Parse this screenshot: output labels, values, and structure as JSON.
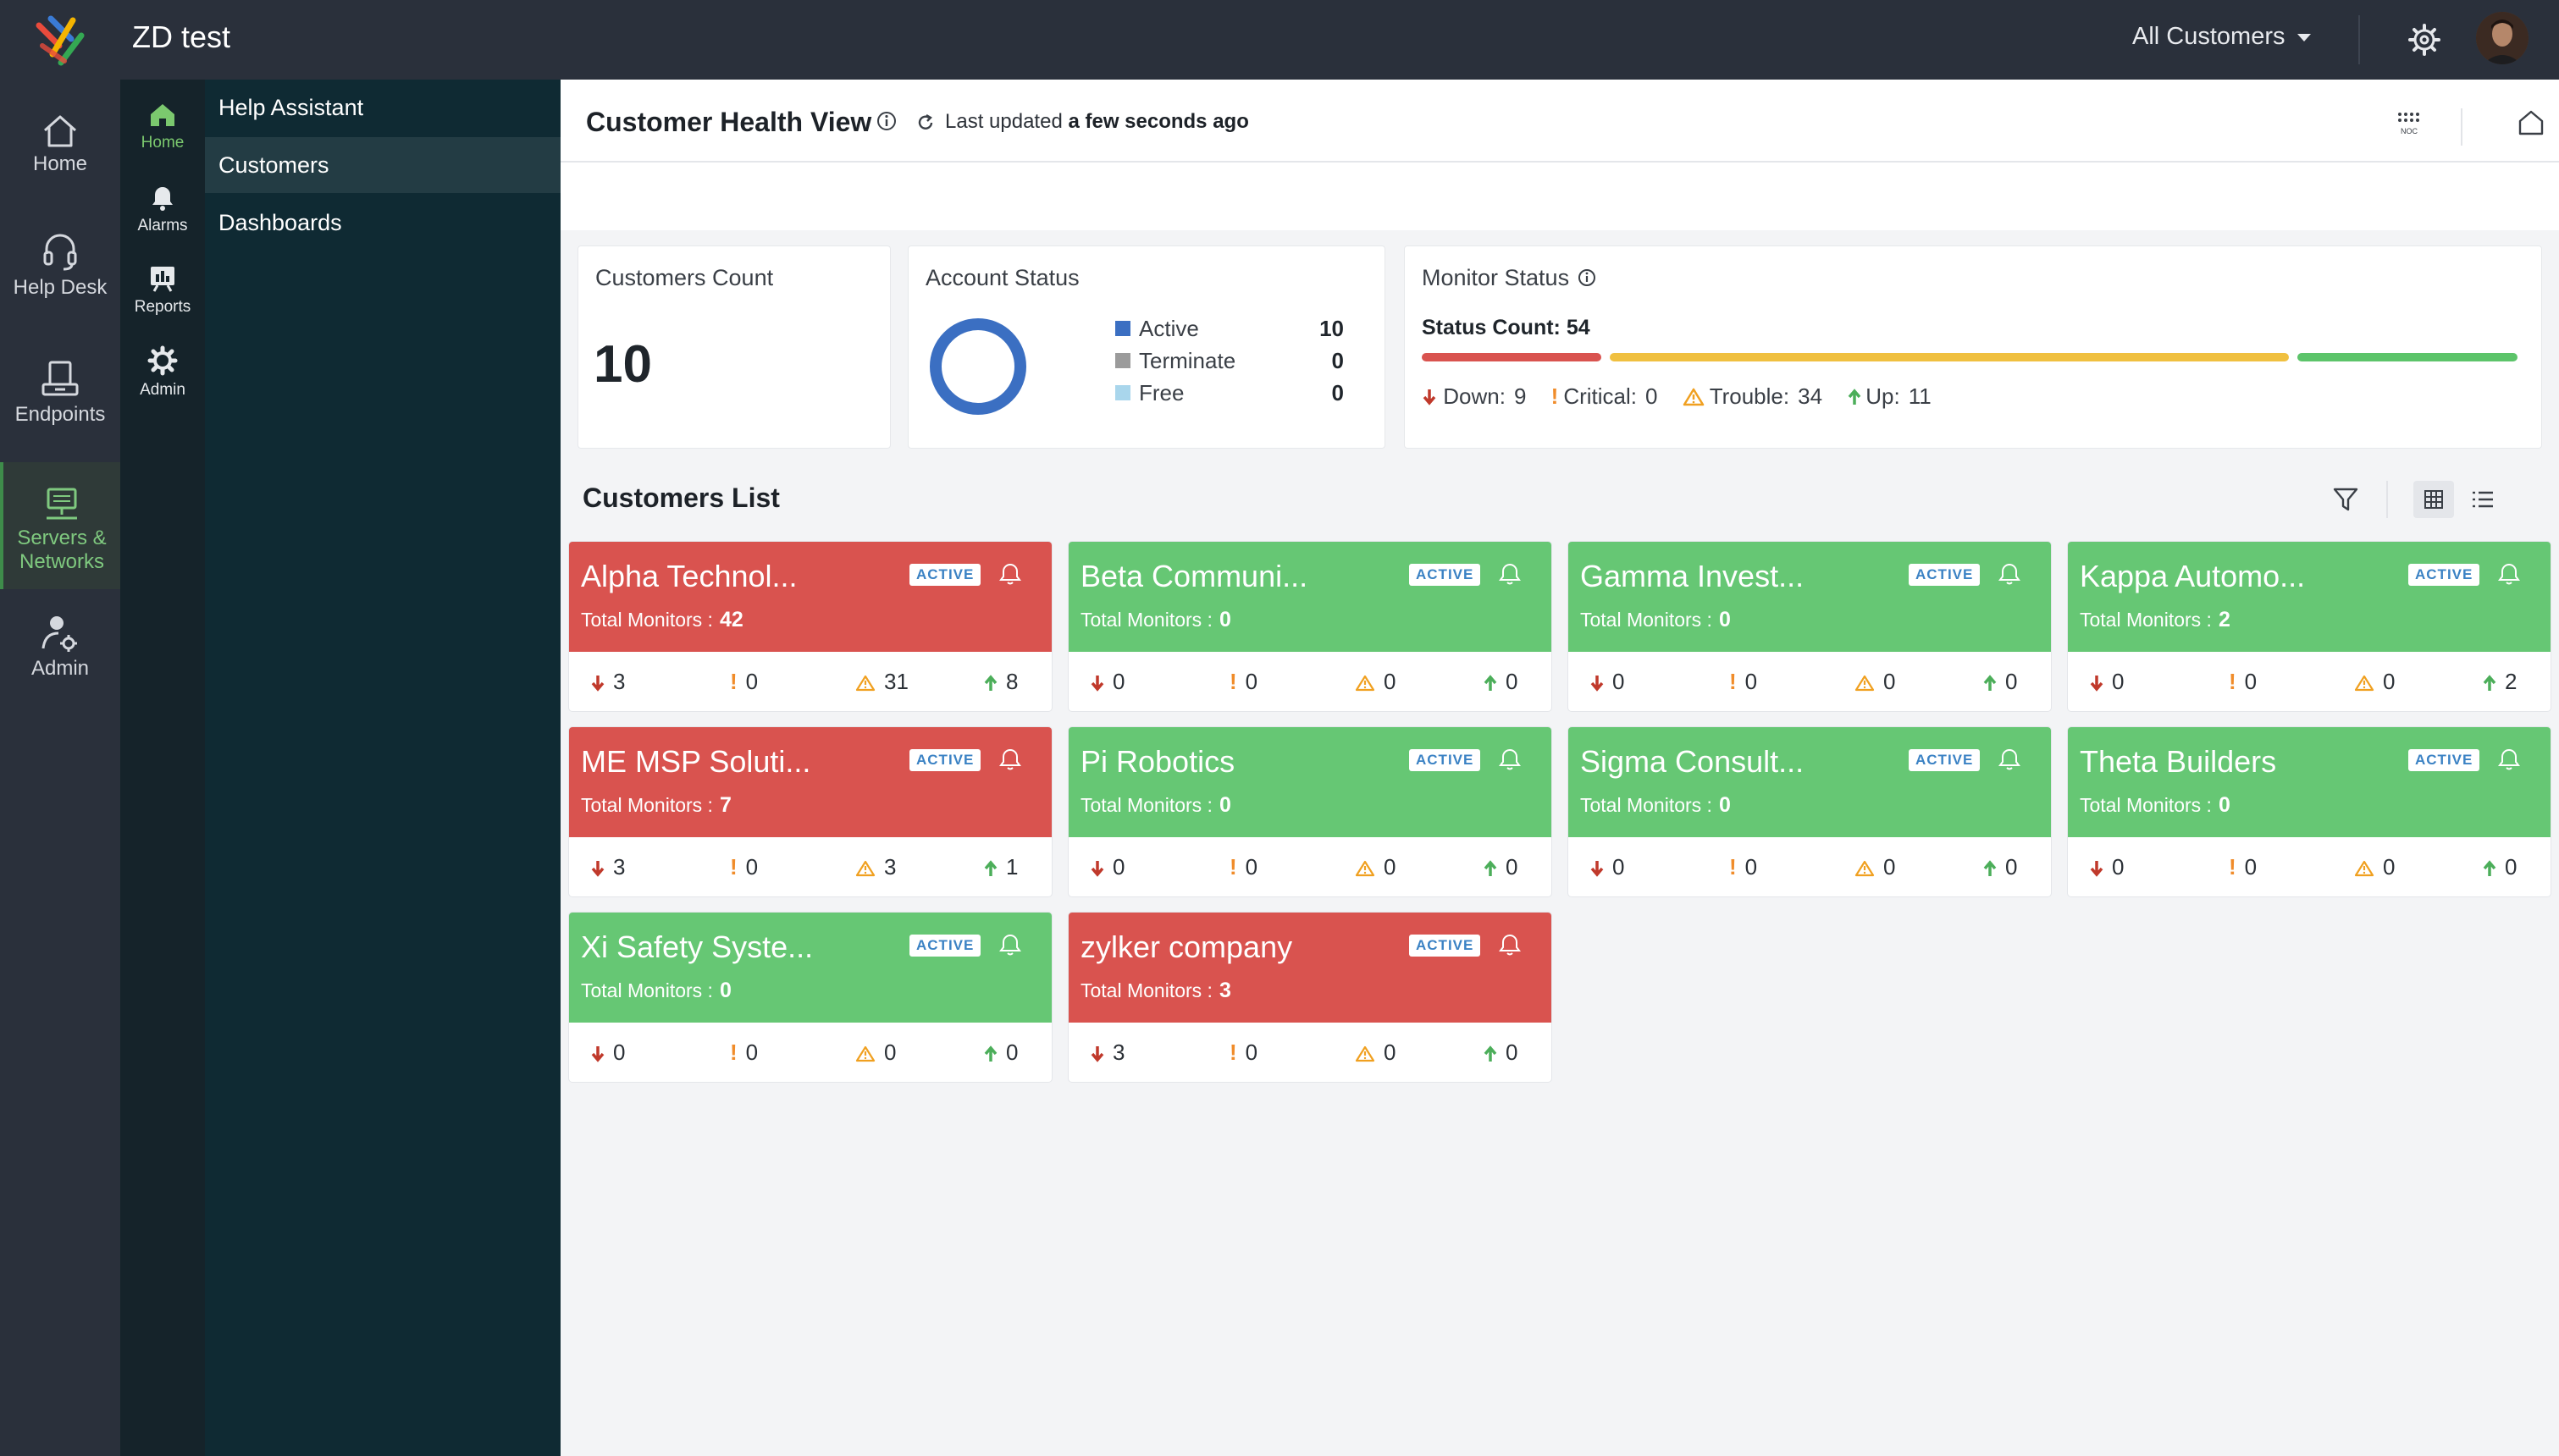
{
  "topbar": {
    "app_title": "ZD test",
    "scope_label": "All Customers"
  },
  "rail": [
    {
      "label": "Home",
      "icon": "home-icon"
    },
    {
      "label": "Help Desk",
      "icon": "headset-icon"
    },
    {
      "label": "Endpoints",
      "icon": "endpoints-icon"
    },
    {
      "label": "Servers &\nNetworks",
      "icon": "network-icon",
      "active": true
    },
    {
      "label": "Admin",
      "icon": "admin-icon"
    }
  ],
  "rail2": [
    {
      "label": "Home",
      "icon": "home-icon",
      "active": true
    },
    {
      "label": "Alarms",
      "icon": "bell-icon"
    },
    {
      "label": "Reports",
      "icon": "reports-icon"
    },
    {
      "label": "Admin",
      "icon": "gear-icon"
    }
  ],
  "submenu": [
    "Help Assistant",
    "Customers",
    "Dashboards"
  ],
  "header": {
    "title": "Customer Health View",
    "updated_prefix": "Last updated",
    "updated_value": "a few seconds ago",
    "noc_label": "NOC"
  },
  "summary": {
    "customers_count": {
      "title": "Customers Count",
      "value": "10"
    },
    "account_status": {
      "title": "Account Status",
      "items": [
        {
          "label": "Active",
          "value": "10",
          "color": "#3b6fc2"
        },
        {
          "label": "Terminate",
          "value": "0",
          "color": "#9b9b9b"
        },
        {
          "label": "Free",
          "value": "0",
          "color": "#a9d6ec"
        }
      ]
    },
    "monitor_status": {
      "title": "Monitor Status",
      "count_label": "Status Count: 54",
      "bars": [
        {
          "status": "down",
          "value": 9,
          "color": "#d9534f"
        },
        {
          "status": "trouble",
          "value": 34,
          "color": "#f0c040"
        },
        {
          "status": "up",
          "value": 11,
          "color": "#5cc46a"
        }
      ],
      "down": "Down:",
      "down_value": "9",
      "critical": "Critical:",
      "critical_value": "0",
      "trouble": "Trouble:",
      "trouble_value": "34",
      "up": "Up:",
      "up_value": "11"
    }
  },
  "list": {
    "title": "Customers List",
    "badge": "ACTIVE",
    "total_monitors_label": "Total Monitors :",
    "customers": [
      {
        "name": "Alpha Technol...",
        "status": "red",
        "total": "42",
        "down": "3",
        "critical": "0",
        "trouble": "31",
        "up": "8"
      },
      {
        "name": "Beta Communi...",
        "status": "green",
        "total": "0",
        "down": "0",
        "critical": "0",
        "trouble": "0",
        "up": "0"
      },
      {
        "name": "Gamma Invest...",
        "status": "green",
        "total": "0",
        "down": "0",
        "critical": "0",
        "trouble": "0",
        "up": "0"
      },
      {
        "name": "Kappa Automo...",
        "status": "green",
        "total": "2",
        "down": "0",
        "critical": "0",
        "trouble": "0",
        "up": "2"
      },
      {
        "name": "ME MSP Soluti...",
        "status": "red",
        "total": "7",
        "down": "3",
        "critical": "0",
        "trouble": "3",
        "up": "1"
      },
      {
        "name": "Pi Robotics",
        "status": "green",
        "total": "0",
        "down": "0",
        "critical": "0",
        "trouble": "0",
        "up": "0"
      },
      {
        "name": "Sigma Consult...",
        "status": "green",
        "total": "0",
        "down": "0",
        "critical": "0",
        "trouble": "0",
        "up": "0"
      },
      {
        "name": "Theta Builders",
        "status": "green",
        "total": "0",
        "down": "0",
        "critical": "0",
        "trouble": "0",
        "up": "0"
      },
      {
        "name": "Xi Safety Syste...",
        "status": "green",
        "total": "0",
        "down": "0",
        "critical": "0",
        "trouble": "0",
        "up": "0"
      },
      {
        "name": "zylker company",
        "status": "red",
        "total": "3",
        "down": "3",
        "critical": "0",
        "trouble": "0",
        "up": "0"
      }
    ]
  }
}
